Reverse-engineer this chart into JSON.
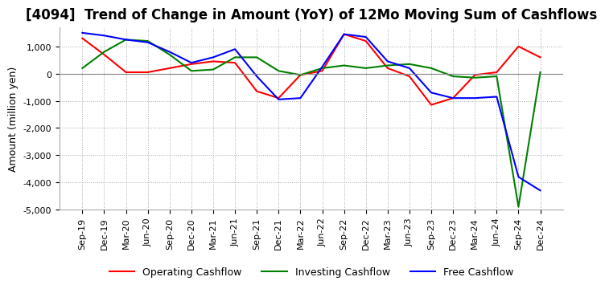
{
  "title": "[4094]  Trend of Change in Amount (YoY) of 12Mo Moving Sum of Cashflows",
  "ylabel": "Amount (million yen)",
  "ylim": [
    -5000,
    1700
  ],
  "yticks": [
    1000,
    0,
    -1000,
    -2000,
    -3000,
    -4000,
    -5000
  ],
  "x_labels": [
    "Sep-19",
    "Dec-19",
    "Mar-20",
    "Jun-20",
    "Sep-20",
    "Dec-20",
    "Mar-21",
    "Jun-21",
    "Sep-21",
    "Dec-21",
    "Mar-22",
    "Jun-22",
    "Sep-22",
    "Dec-22",
    "Mar-23",
    "Jun-23",
    "Sep-23",
    "Dec-23",
    "Mar-24",
    "Jun-24",
    "Sep-24",
    "Dec-24"
  ],
  "operating": [
    1300,
    700,
    50,
    50,
    200,
    350,
    450,
    400,
    -650,
    -900,
    -50,
    100,
    1450,
    1200,
    200,
    -100,
    -1150,
    -900,
    -50,
    50,
    1000,
    600
  ],
  "investing": [
    200,
    800,
    1250,
    1200,
    700,
    100,
    150,
    600,
    600,
    100,
    -50,
    200,
    300,
    200,
    300,
    350,
    200,
    -100,
    -150,
    -100,
    -4900,
    50
  ],
  "free": [
    1500,
    1400,
    1250,
    1150,
    800,
    400,
    600,
    900,
    -100,
    -950,
    -900,
    250,
    1450,
    1350,
    450,
    200,
    -700,
    -900,
    -900,
    -850,
    -3800,
    -4300
  ],
  "operating_color": "#ff0000",
  "investing_color": "#008000",
  "free_color": "#0000ff",
  "legend_labels": [
    "Operating Cashflow",
    "Investing Cashflow",
    "Free Cashflow"
  ],
  "title_fontsize": 12,
  "label_fontsize": 9,
  "tick_fontsize": 8
}
